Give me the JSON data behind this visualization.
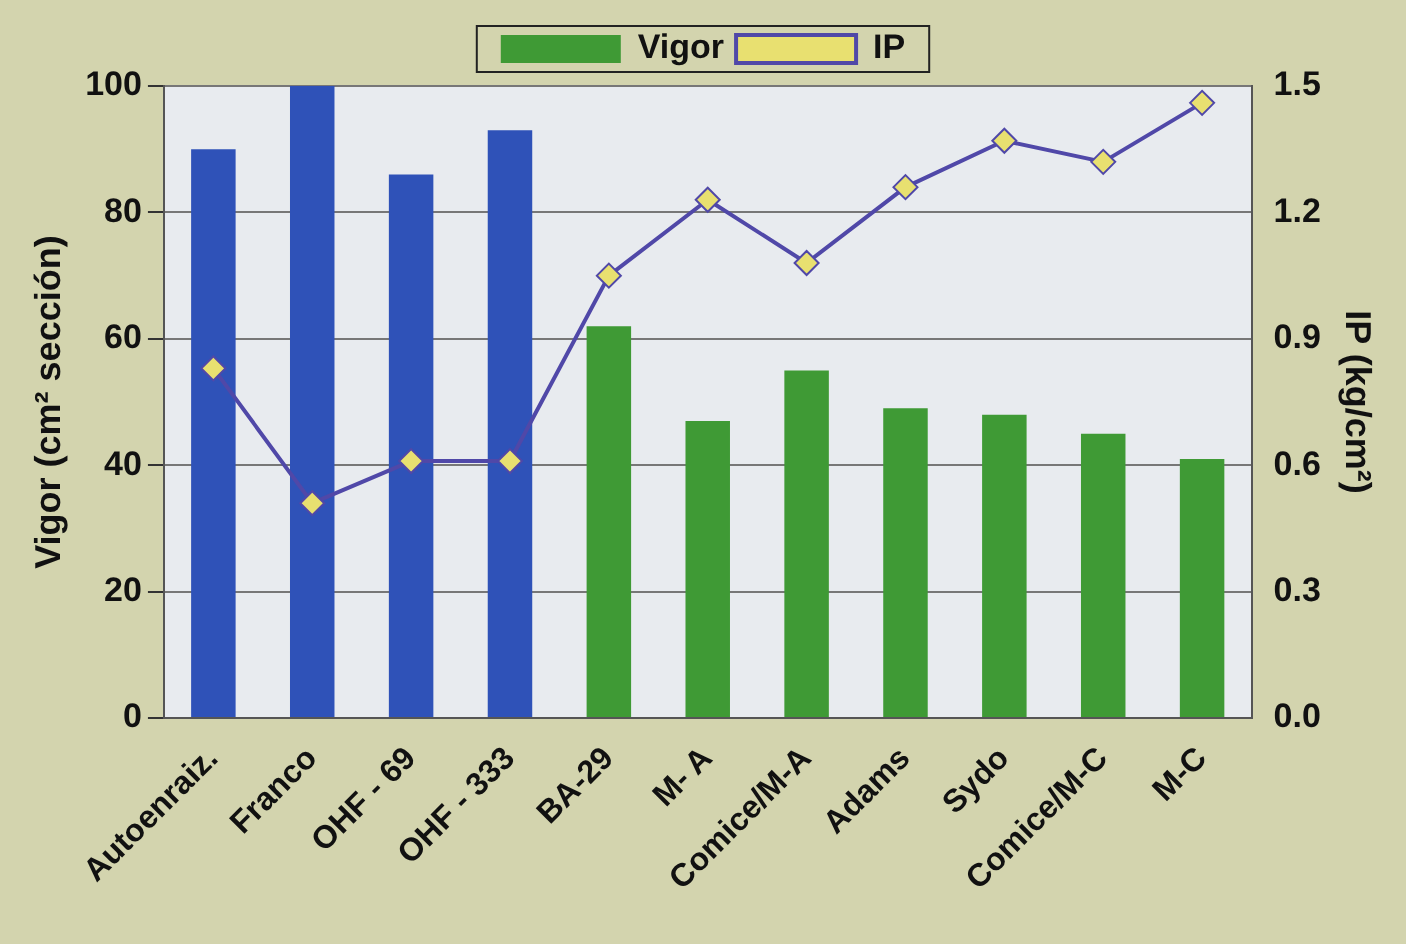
{
  "chart_data": {
    "type": "bar",
    "categories": [
      "Autoenraiz.",
      "Franco",
      "OHF - 69",
      "OHF - 333",
      "BA-29",
      "M- A",
      "Comice/M-A",
      "Adams",
      "Sydo",
      "Comice/M-C",
      "M-C"
    ],
    "ylabel": "Vigor (cm² sección)",
    "y2label": "IP (kg/cm²)",
    "ylim": [
      0,
      100
    ],
    "yticks": [
      0,
      20,
      40,
      60,
      80,
      100
    ],
    "y2lim": [
      0,
      1.5
    ],
    "y2ticks": [
      {
        "value": 0,
        "label": "0.0"
      },
      0.3,
      0.6,
      0.9,
      1.2,
      1.5
    ],
    "grid": "y",
    "legend": "top",
    "series": [
      {
        "name": "Vigor",
        "color": "#3f9a35",
        "colors": [
          "#2f52b8",
          "#2f52b8",
          "#2f52b8",
          "#2f52b8",
          "#3f9a35",
          "#3f9a35",
          "#3f9a35",
          "#3f9a35",
          "#3f9a35",
          "#3f9a35",
          "#3f9a35"
        ],
        "values": [
          90,
          100,
          86,
          93,
          62,
          47,
          55,
          49,
          48,
          45,
          41
        ]
      },
      {
        "name": "IP",
        "type": "line",
        "axis": "y2",
        "color": "#5048a8",
        "marker": "diamond",
        "values": [
          0.83,
          0.51,
          0.61,
          0.61,
          1.05,
          1.23,
          1.08,
          1.26,
          1.37,
          1.32,
          1.46
        ]
      }
    ]
  }
}
